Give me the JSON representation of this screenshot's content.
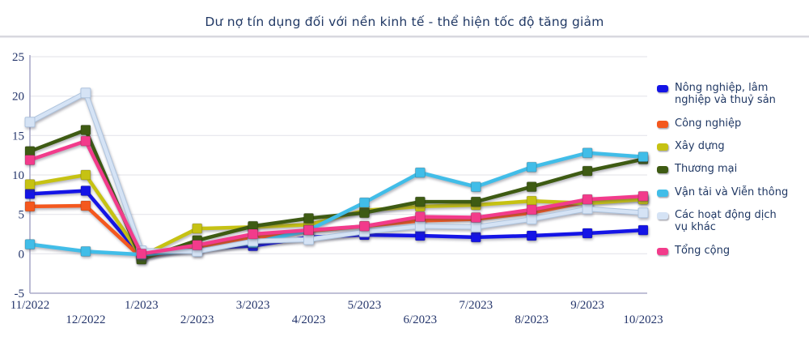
{
  "title": "Dư nợ tín dụng đối với nền kinh tế - thể hiện tốc độ tăng giảm",
  "colors": {
    "title_text": "#203864",
    "axis_text": "#24356B",
    "gridline": "#E6E6EC",
    "axis_line": "#ABABC9",
    "background": "#FFFFFF"
  },
  "chart_data": {
    "type": "line",
    "title": "Dư nợ tín dụng đối với nền kinh tế - thể hiện tốc độ tăng giảm",
    "categories": [
      "11/2022",
      "12/2022",
      "1/2023",
      "2/2023",
      "3/2023",
      "4/2023",
      "5/2023",
      "6/2023",
      "7/2023",
      "8/2023",
      "9/2023",
      "10/2023"
    ],
    "series": [
      {
        "name": "Nông nghiệp, lâm nghiệp và thuỷ sản",
        "color": "#1414E6",
        "values": [
          7.6,
          8.0,
          -0.3,
          0.7,
          1.0,
          2.1,
          2.4,
          2.3,
          2.1,
          2.3,
          2.6,
          3.0
        ]
      },
      {
        "name": "Công nghiệp",
        "color": "#F4581E",
        "values": [
          6.0,
          6.1,
          -0.5,
          0.9,
          2.0,
          2.9,
          3.5,
          4.2,
          4.4,
          5.2,
          6.6,
          7.0
        ]
      },
      {
        "name": "Xây dựng",
        "color": "#C6C213",
        "values": [
          8.8,
          10.0,
          -0.3,
          3.2,
          3.4,
          3.7,
          5.5,
          6.0,
          6.2,
          6.7,
          6.4,
          6.9
        ]
      },
      {
        "name": "Thương mại",
        "color": "#3E5B13",
        "values": [
          13.0,
          15.7,
          -0.7,
          1.7,
          3.5,
          4.5,
          5.2,
          6.6,
          6.6,
          8.5,
          10.5,
          12.0
        ]
      },
      {
        "name": "Vận tải và Viễn thông",
        "color": "#41BDE8",
        "values": [
          1.2,
          0.3,
          -0.1,
          0.4,
          1.4,
          3.0,
          6.5,
          10.3,
          8.5,
          11.0,
          12.8,
          12.3
        ]
      },
      {
        "name": "Các hoạt động dịch vụ khác",
        "color": "#D5E3F5",
        "outline": "#AEC4DE",
        "values": [
          16.7,
          20.4,
          0.4,
          0.3,
          1.6,
          1.8,
          2.8,
          3.5,
          3.4,
          4.4,
          5.7,
          5.2
        ]
      },
      {
        "name": "Tổng cộng",
        "color": "#F23B8B",
        "values": [
          11.9,
          14.3,
          0.0,
          1.1,
          2.5,
          3.0,
          3.5,
          4.7,
          4.6,
          5.6,
          6.9,
          7.3
        ]
      }
    ],
    "xlabel": "",
    "ylabel": "",
    "ylim": [
      -5,
      25
    ],
    "y_ticks": [
      -5,
      0,
      5,
      10,
      15,
      20,
      25
    ],
    "grid": "horizontal",
    "legend_position": "right",
    "marker": "square",
    "x_label_rows": "staggered"
  }
}
